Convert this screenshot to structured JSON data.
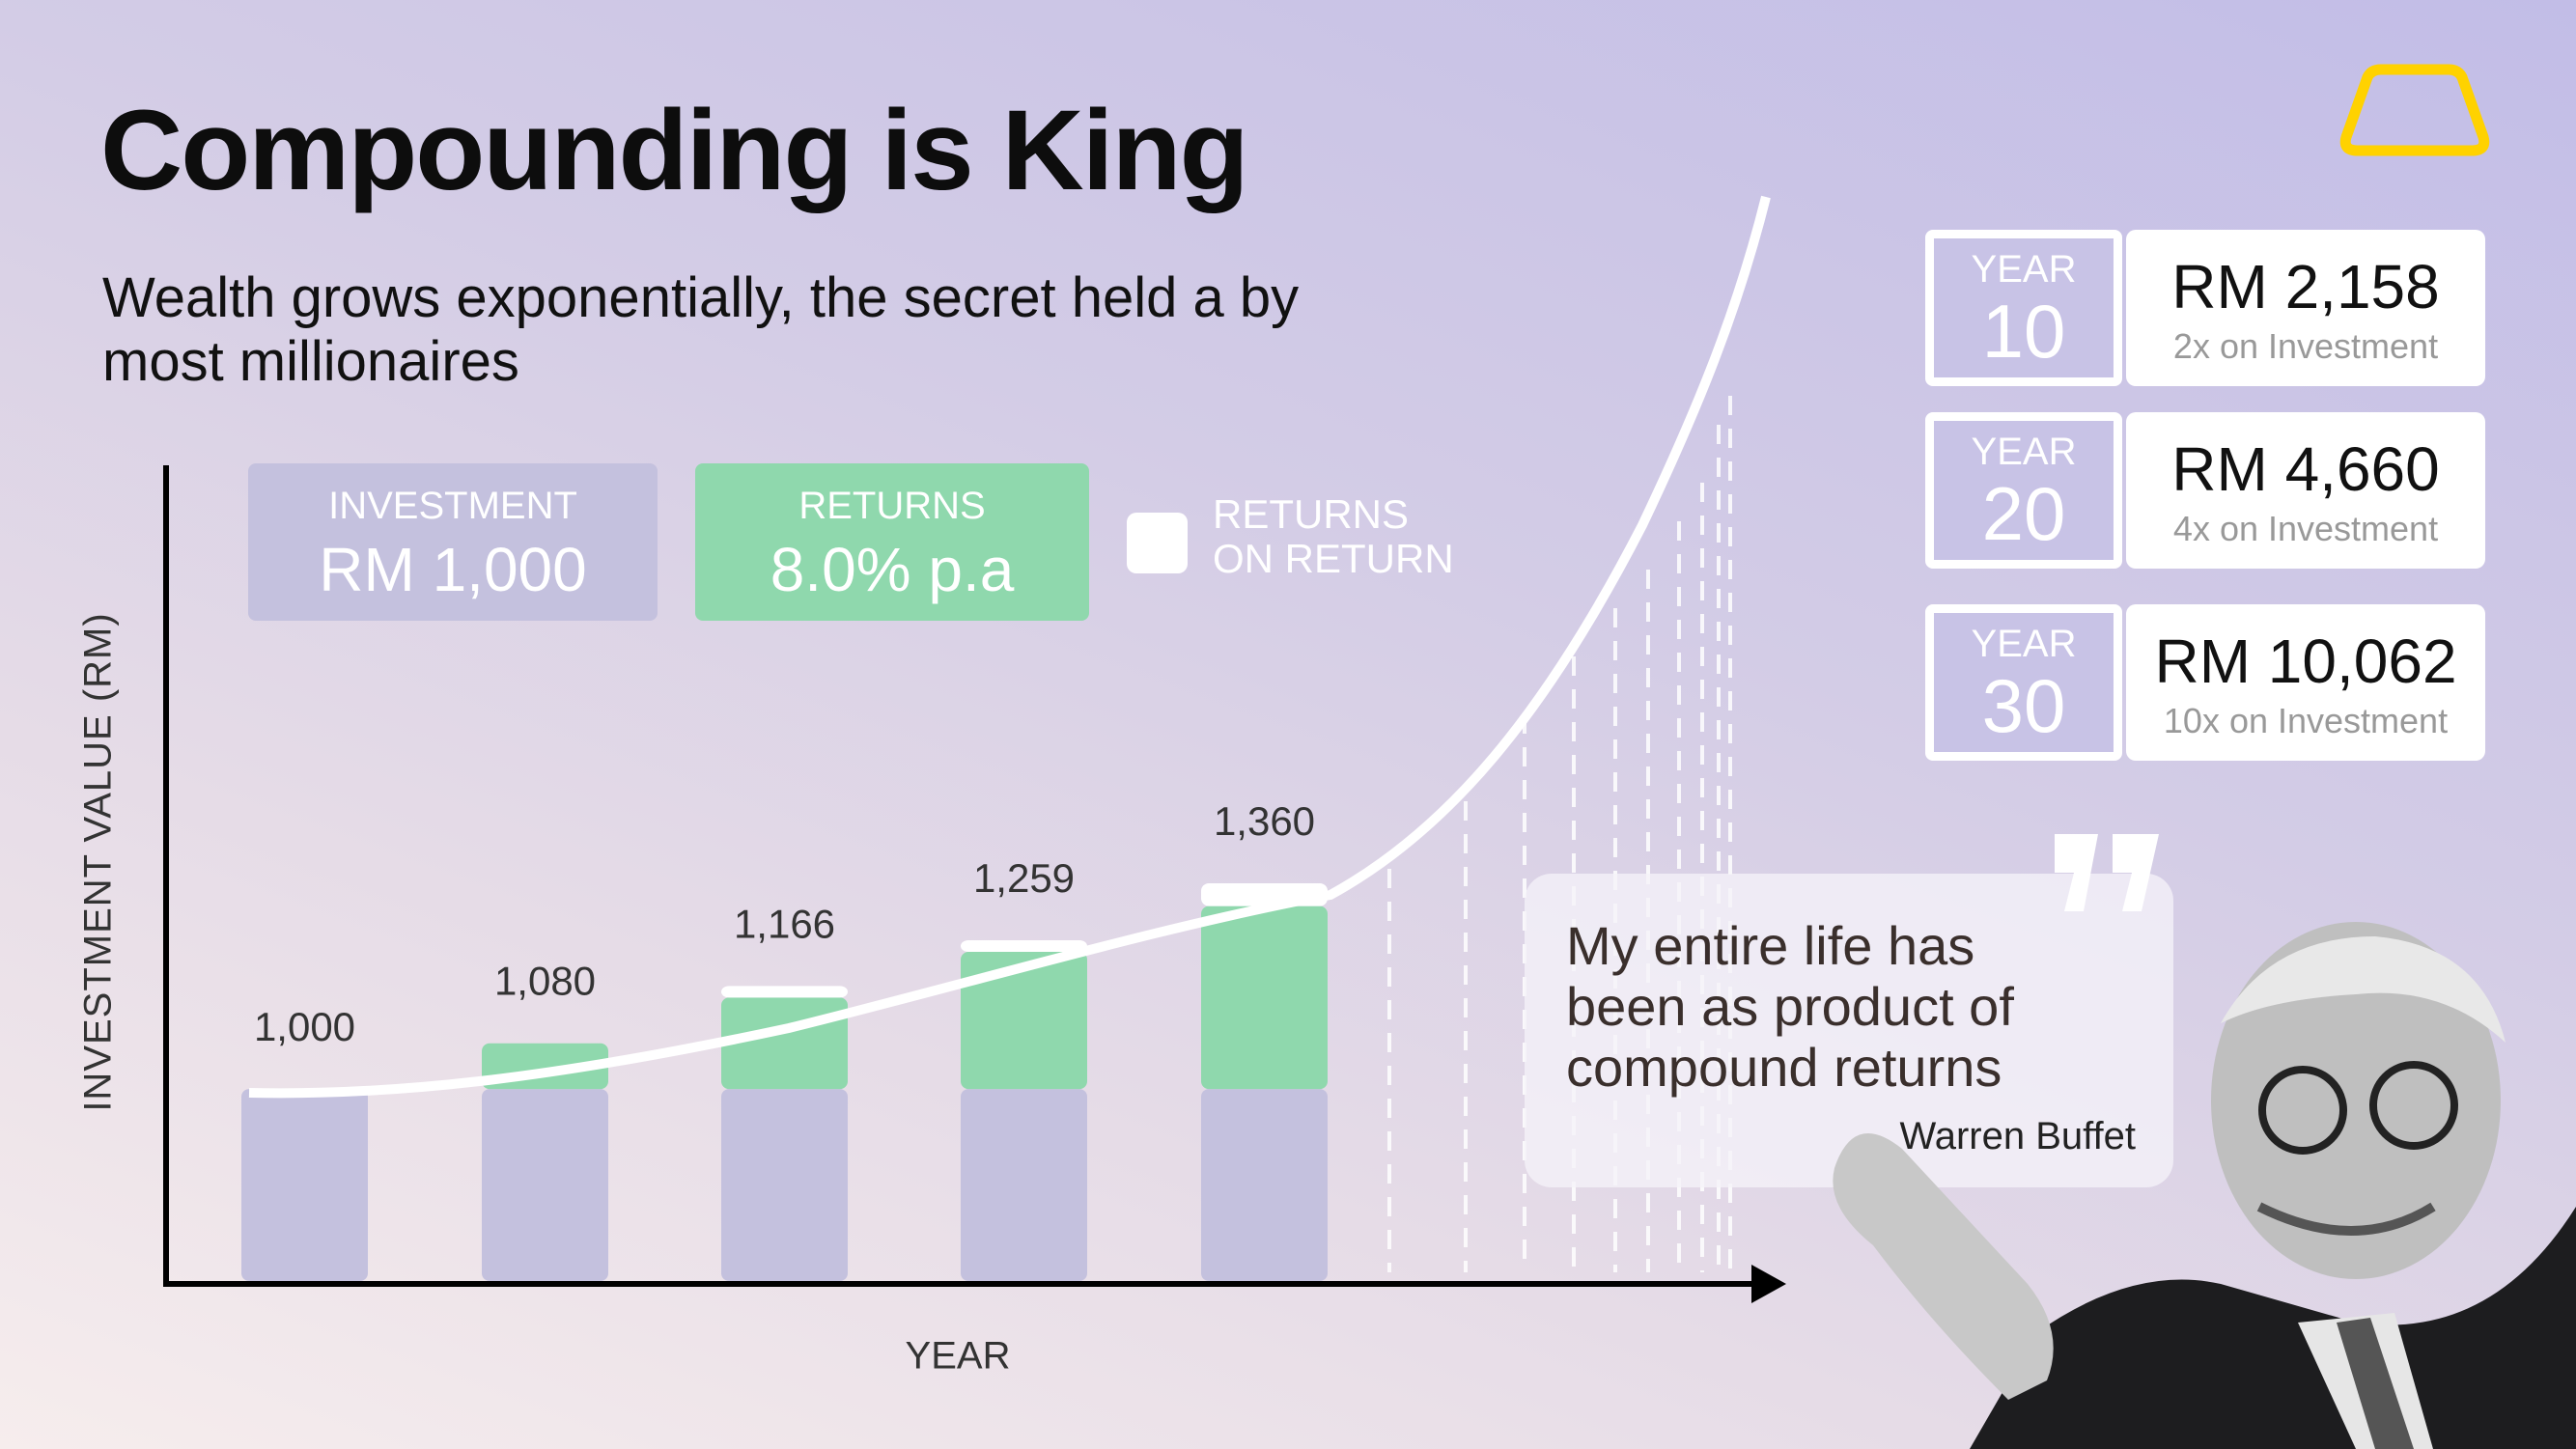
{
  "header": {
    "title": "Compounding is King",
    "subtitle": "Wealth grows exponentially, the secret held a by most millionaires",
    "logo_icon": "gold-bar-outline-icon",
    "logo_color": "#FFD200"
  },
  "info_boxes": {
    "investment": {
      "label": "INVESTMENT",
      "value": "RM 1,000"
    },
    "returns": {
      "label": "RETURNS",
      "value": "8.0% p.a"
    },
    "legend_label": "RETURNS ON RETURN"
  },
  "chart_data": {
    "type": "bar",
    "xlabel": "YEAR",
    "ylabel": "INVESTMENT VALUE (RM)",
    "values": [
      1000,
      1080,
      1166,
      1259,
      1360
    ],
    "labels": [
      "1,000",
      "1,080",
      "1,166",
      "1,259",
      "1,360"
    ],
    "series": [
      {
        "name": "INVESTMENT",
        "values": [
          1000,
          1000,
          1000,
          1000,
          1000
        ],
        "color": "#C4C1DE"
      },
      {
        "name": "RETURNS",
        "values": [
          0,
          80,
          160,
          240,
          320
        ],
        "color": "#8FD8AD"
      },
      {
        "name": "RETURNS ON RETURN",
        "values": [
          0,
          0,
          6,
          19,
          40
        ],
        "color": "#FFFFFF"
      }
    ],
    "trend": "exponential curve",
    "grid": false
  },
  "milestones": [
    {
      "year_label": "YEAR",
      "year": "10",
      "amount": "RM 2,158",
      "multiple": "2x on Investment"
    },
    {
      "year_label": "YEAR",
      "year": "20",
      "amount": "RM 4,660",
      "multiple": "4x on Investment"
    },
    {
      "year_label": "YEAR",
      "year": "30",
      "amount": "RM 10,062",
      "multiple": "10x on Investment"
    }
  ],
  "quote": {
    "text": "My entire life has been as product of compound returns",
    "author": "Warren Buffet"
  },
  "colors": {
    "investment": "#C4C1DE",
    "returns": "#8FD8AD",
    "return_on_return": "#FFFFFF",
    "accent": "#FFD200"
  }
}
